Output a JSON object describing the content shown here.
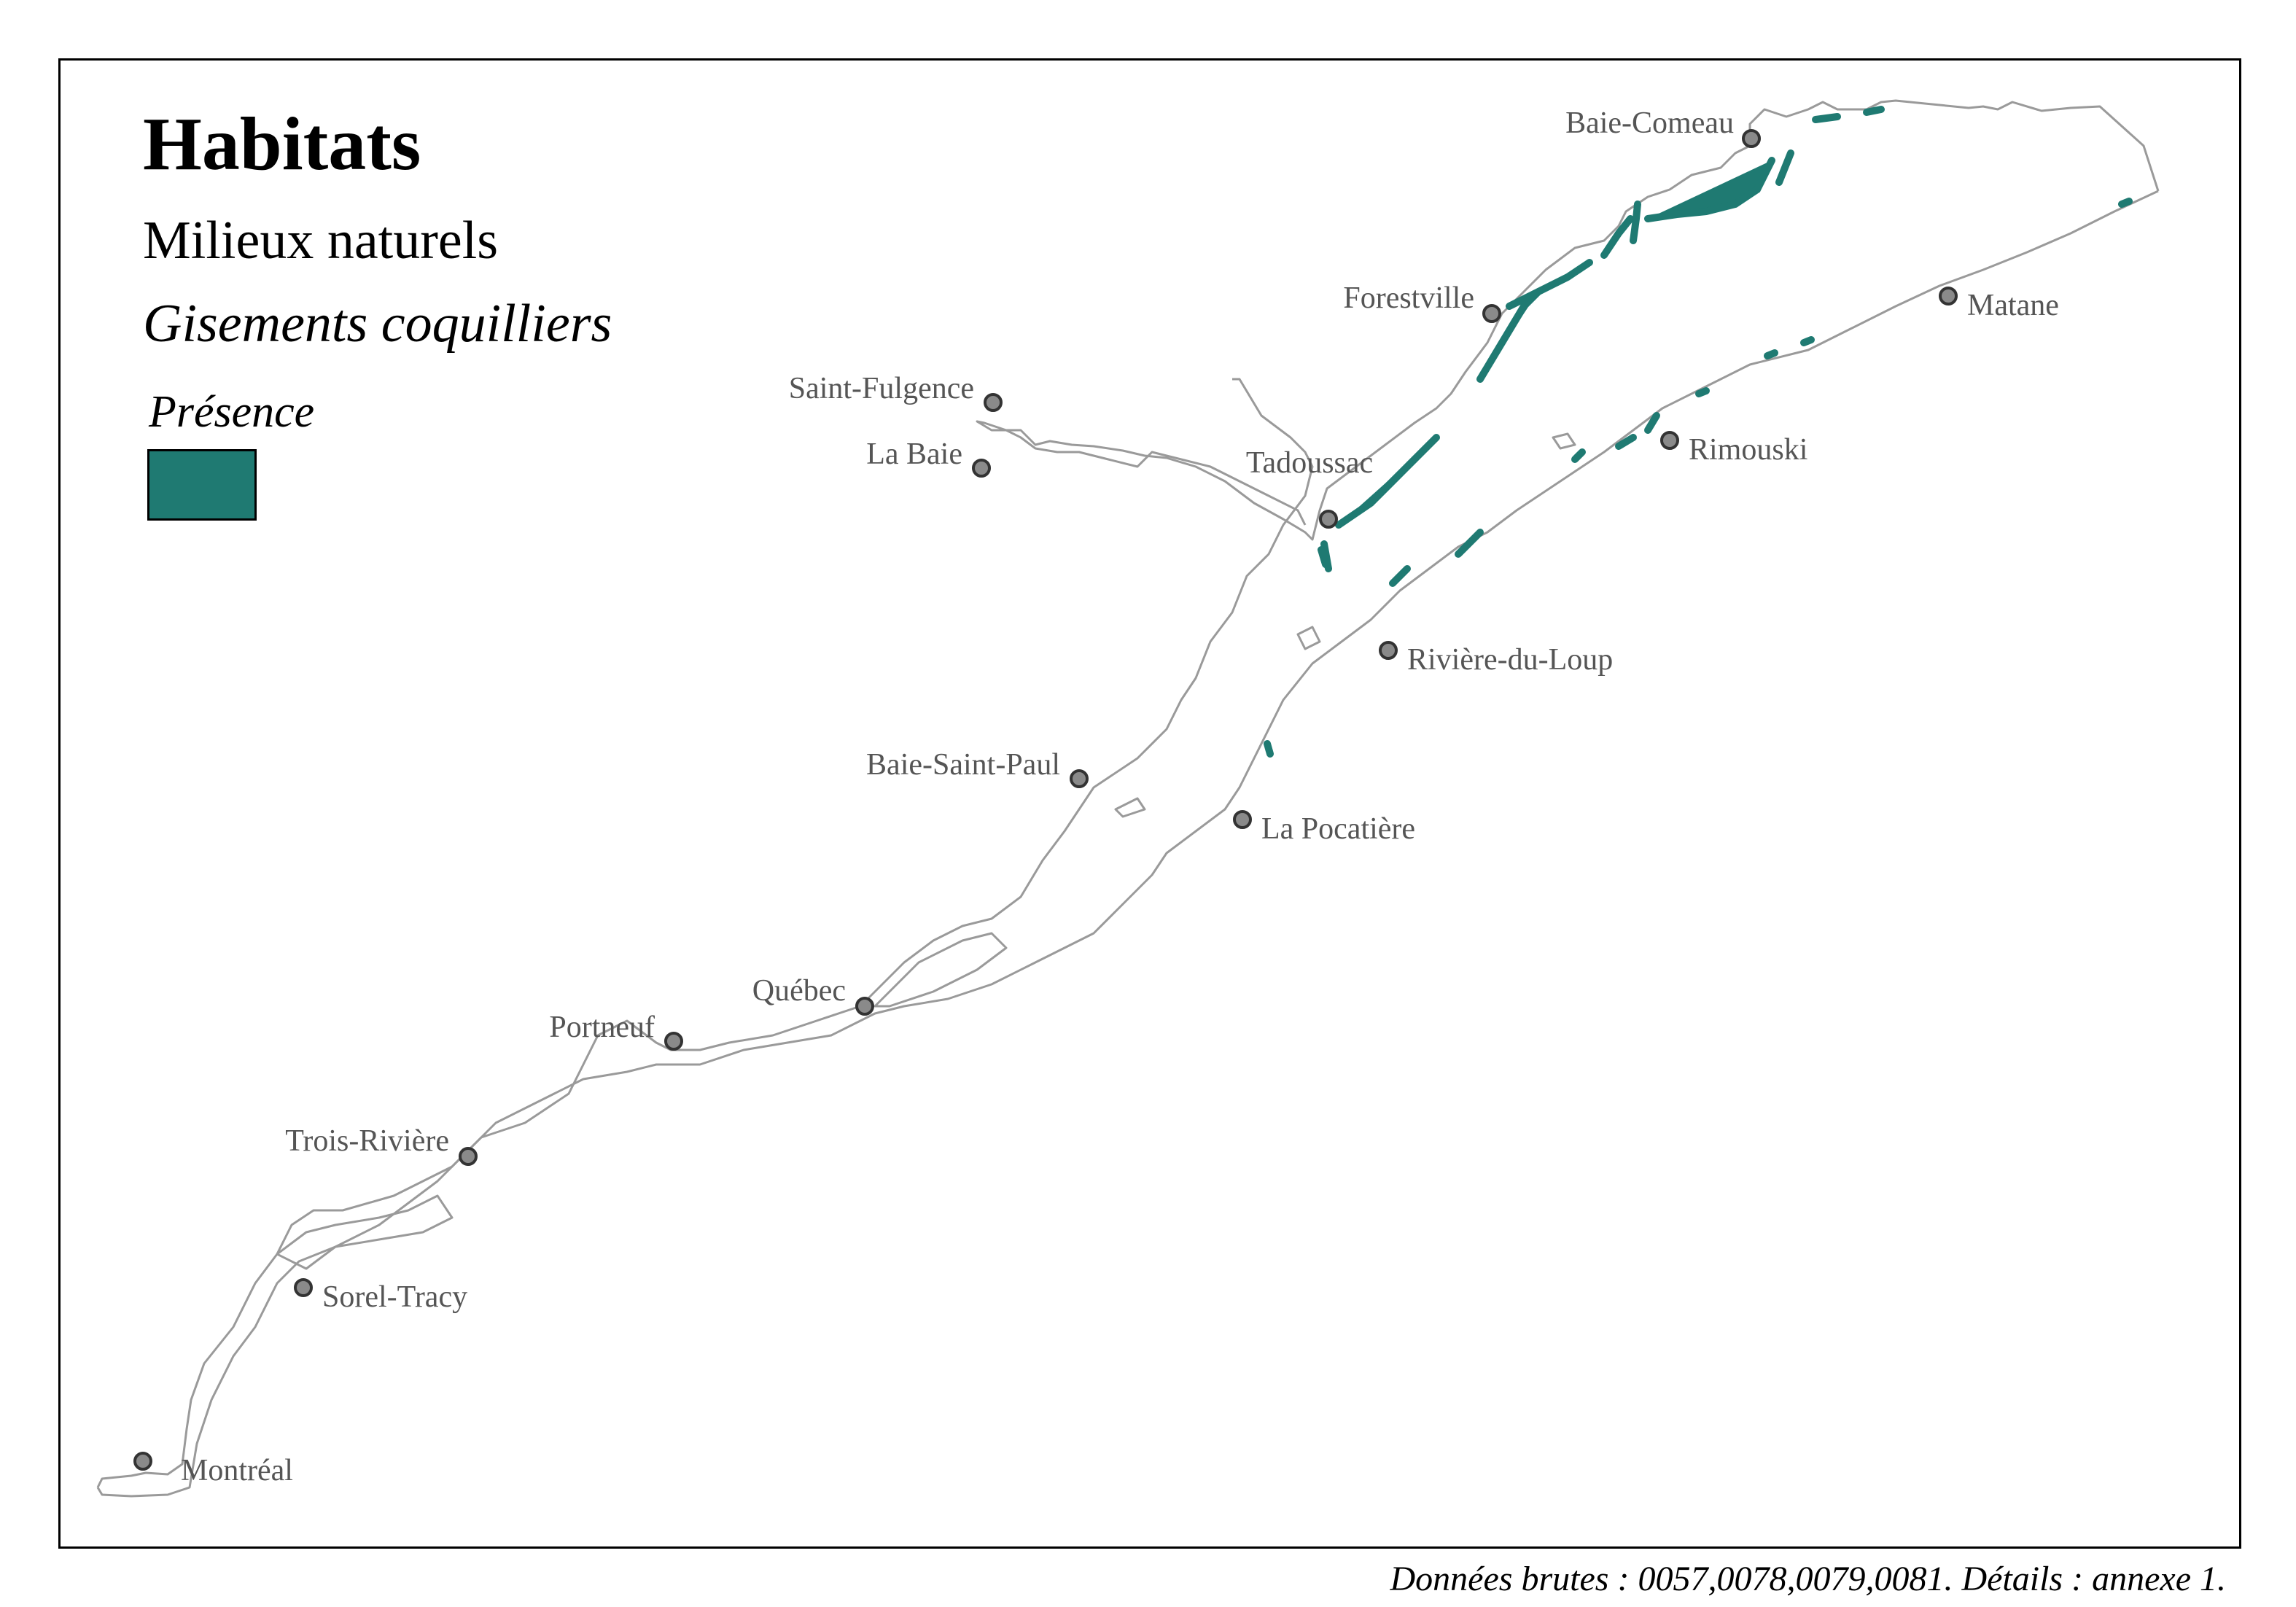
{
  "legend": {
    "title": "Habitats",
    "subtitle": "Milieux naturels",
    "layer": "Gisements coquilliers",
    "item_label": "Présence",
    "item_color": "#1f7a72"
  },
  "colors": {
    "shoreline": "#9a9a9a",
    "city_fill": "#8a8a8a",
    "city_stroke": "#333333",
    "label": "#555555"
  },
  "cities": [
    {
      "name": "Baie-Comeau"
    },
    {
      "name": "Forestville"
    },
    {
      "name": "Matane"
    },
    {
      "name": "Saint-Fulgence"
    },
    {
      "name": "La Baie"
    },
    {
      "name": "Tadoussac"
    },
    {
      "name": "Rimouski"
    },
    {
      "name": "Rivière-du-Loup"
    },
    {
      "name": "Baie-Saint-Paul"
    },
    {
      "name": "La Pocatière"
    },
    {
      "name": "Québec"
    },
    {
      "name": "Portneuf"
    },
    {
      "name": "Trois-Rivière"
    },
    {
      "name": "Sorel-Tracy"
    },
    {
      "name": "Montréal"
    }
  ],
  "footer": {
    "source": "Données brutes : 0057,0078,0079,0081. Détails : annexe 1."
  }
}
